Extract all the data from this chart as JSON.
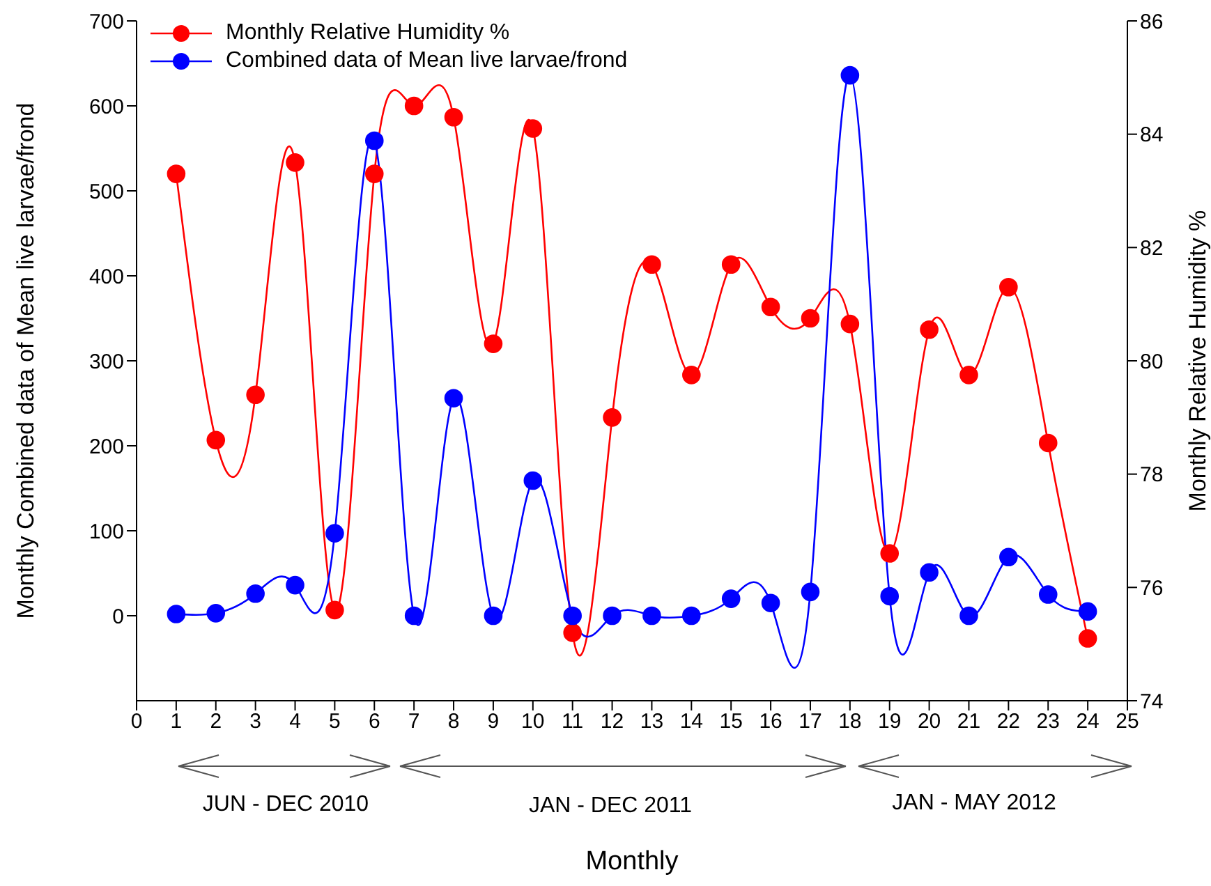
{
  "chart_data": {
    "type": "line",
    "xlabel": "Monthly",
    "ylabel": "Monthly Combined data of Mean live larvae/frond",
    "y2label": "Monthly Relative Humidity %",
    "x": [
      1,
      2,
      3,
      4,
      5,
      6,
      7,
      8,
      9,
      10,
      11,
      12,
      13,
      14,
      15,
      16,
      17,
      18,
      19,
      20,
      21,
      22,
      23,
      24
    ],
    "series": [
      {
        "name": "Monthly Relative Humidity %",
        "color": "#ff0000",
        "axis": "y2",
        "values": [
          83.3,
          78.6,
          79.4,
          83.5,
          75.6,
          83.3,
          84.5,
          84.3,
          80.3,
          84.1,
          75.2,
          79.0,
          81.7,
          79.75,
          81.7,
          80.95,
          80.75,
          80.65,
          76.6,
          80.55,
          79.75,
          81.3,
          78.55,
          75.1
        ]
      },
      {
        "name": "Combined data of Mean live larvae/frond",
        "color": "#0000ff",
        "values": [
          2,
          3,
          26,
          36,
          97,
          559,
          0,
          256,
          0,
          159,
          0,
          0,
          0,
          0,
          20,
          15,
          28,
          636,
          23,
          51,
          0,
          69,
          25,
          5
        ]
      }
    ],
    "xlim": [
      0,
      25
    ],
    "xticks": [
      0,
      1,
      2,
      3,
      4,
      5,
      6,
      7,
      8,
      9,
      10,
      11,
      12,
      13,
      14,
      15,
      16,
      17,
      18,
      19,
      20,
      21,
      22,
      23,
      24,
      25
    ],
    "ylim": [
      -100,
      700
    ],
    "yticks": [
      0,
      100,
      200,
      300,
      400,
      500,
      600,
      700
    ],
    "y2lim": [
      74,
      86
    ],
    "y2ticks": [
      74,
      76,
      78,
      80,
      82,
      84,
      86
    ],
    "annotations": [
      "JUN - DEC 2010",
      "JAN - DEC 2011",
      "JAN - MAY 2012"
    ],
    "grid": false,
    "legend": "top left",
    "marker": "circle",
    "line_style": "solid"
  }
}
